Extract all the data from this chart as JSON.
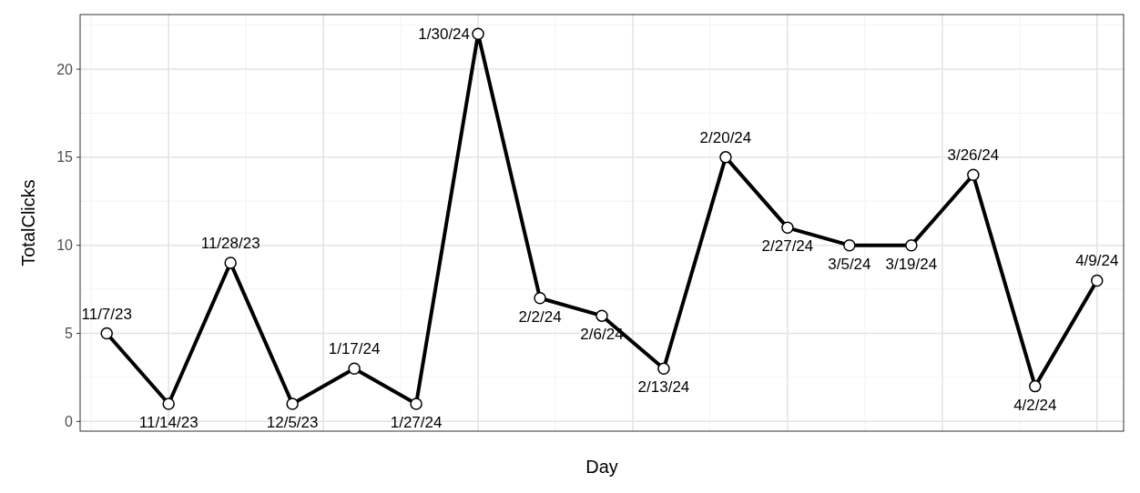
{
  "chart_data": {
    "type": "line",
    "xlabel": "Day",
    "ylabel": "TotalClicks",
    "categories": [
      null,
      null,
      null,
      null,
      null,
      null,
      null,
      null,
      null,
      null,
      null,
      null,
      null,
      null,
      null,
      null,
      null
    ],
    "values": [
      5,
      1,
      9,
      1,
      3,
      1,
      22,
      7,
      6,
      3,
      15,
      11,
      10,
      10,
      14,
      2,
      8
    ],
    "color": "#000000",
    "marker": "circle",
    "line_style": "solid",
    "ylim": [
      -0.55,
      23.1
    ],
    "yticks": [
      0,
      5,
      10,
      15,
      20
    ],
    "grid": true,
    "tick_labels": "y",
    "annotations": [
      {
        "text": "11/7/23",
        "y": 5
      },
      {
        "text": "11/14/23",
        "y": 1
      },
      {
        "text": "11/28/23",
        "y": 9
      },
      {
        "text": "12/5/23",
        "y": 1
      },
      {
        "text": "1/17/24",
        "y": 3
      },
      {
        "text": "1/27/24",
        "y": 1
      },
      "1/30/24",
      {
        "text": "2/2/24",
        "y": 7
      },
      {
        "text": "2/6/24",
        "y": 6
      },
      {
        "text": "2/13/24",
        "y": 3
      },
      {
        "text": "2/20/24",
        "y": 15
      },
      {
        "text": "2/27/24",
        "y": 11
      },
      {
        "text": "3/5/24",
        "y": 10
      },
      {
        "text": "3/19/24",
        "y": 10
      },
      {
        "text": "3/26/24",
        "y": 14
      },
      {
        "text": "4/2/24",
        "y": 2
      },
      {
        "text": "4/9/24",
        "y": 8
      }
    ]
  }
}
